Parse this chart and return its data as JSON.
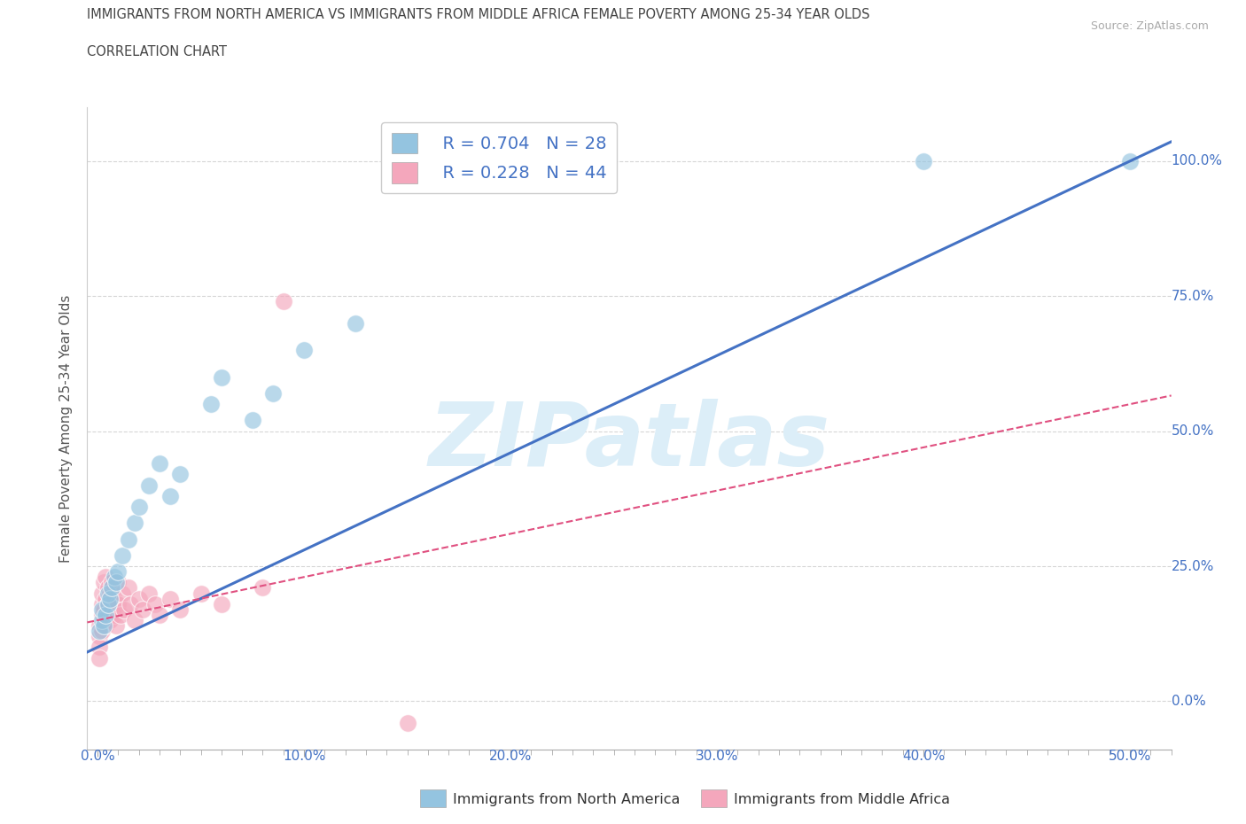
{
  "title_line1": "IMMIGRANTS FROM NORTH AMERICA VS IMMIGRANTS FROM MIDDLE AFRICA FEMALE POVERTY AMONG 25-34 YEAR OLDS",
  "title_line2": "CORRELATION CHART",
  "source": "Source: ZipAtlas.com",
  "xlabel_blue": "Immigrants from North America",
  "xlabel_pink": "Immigrants from Middle Africa",
  "ylabel": "Female Poverty Among 25-34 Year Olds",
  "xlim": [
    -0.005,
    0.52
  ],
  "ylim": [
    -0.09,
    1.1
  ],
  "x_ticks": [
    0.0,
    0.1,
    0.2,
    0.3,
    0.4,
    0.5
  ],
  "x_tick_labels": [
    "0.0%",
    "10.0%",
    "20.0%",
    "30.0%",
    "40.0%",
    "50.0%"
  ],
  "y_ticks": [
    0.0,
    0.25,
    0.5,
    0.75,
    1.0
  ],
  "y_tick_labels": [
    "0.0%",
    "25.0%",
    "50.0%",
    "75.0%",
    "100.0%"
  ],
  "blue_R": 0.704,
  "blue_N": 28,
  "pink_R": 0.228,
  "pink_N": 44,
  "blue_color": "#94c4e0",
  "pink_color": "#f4a7bc",
  "blue_line_color": "#4472c4",
  "pink_line_color": "#e05080",
  "watermark": "ZIPatlas",
  "watermark_color": "#dceef8",
  "background_color": "#ffffff",
  "grid_color": "#cccccc",
  "blue_x": [
    0.001,
    0.002,
    0.002,
    0.003,
    0.004,
    0.005,
    0.005,
    0.006,
    0.007,
    0.008,
    0.009,
    0.01,
    0.012,
    0.015,
    0.018,
    0.02,
    0.025,
    0.03,
    0.035,
    0.04,
    0.055,
    0.06,
    0.075,
    0.085,
    0.1,
    0.125,
    0.4,
    0.5
  ],
  "blue_y": [
    0.13,
    0.15,
    0.17,
    0.14,
    0.16,
    0.18,
    0.2,
    0.19,
    0.21,
    0.23,
    0.22,
    0.24,
    0.27,
    0.3,
    0.33,
    0.36,
    0.4,
    0.44,
    0.38,
    0.42,
    0.55,
    0.6,
    0.52,
    0.57,
    0.65,
    0.7,
    1.0,
    1.0
  ],
  "pink_x": [
    0.001,
    0.001,
    0.001,
    0.001,
    0.002,
    0.002,
    0.002,
    0.002,
    0.003,
    0.003,
    0.003,
    0.004,
    0.004,
    0.004,
    0.005,
    0.005,
    0.005,
    0.006,
    0.006,
    0.007,
    0.007,
    0.008,
    0.008,
    0.009,
    0.01,
    0.01,
    0.011,
    0.012,
    0.013,
    0.015,
    0.016,
    0.018,
    0.02,
    0.022,
    0.025,
    0.028,
    0.03,
    0.035,
    0.04,
    0.05,
    0.06,
    0.08,
    0.09,
    0.15
  ],
  "pink_y": [
    0.14,
    0.12,
    0.1,
    0.08,
    0.16,
    0.13,
    0.18,
    0.2,
    0.15,
    0.17,
    0.22,
    0.14,
    0.19,
    0.23,
    0.16,
    0.18,
    0.21,
    0.15,
    0.2,
    0.17,
    0.22,
    0.16,
    0.19,
    0.14,
    0.18,
    0.22,
    0.16,
    0.2,
    0.17,
    0.21,
    0.18,
    0.15,
    0.19,
    0.17,
    0.2,
    0.18,
    0.16,
    0.19,
    0.17,
    0.2,
    0.18,
    0.21,
    0.74,
    -0.04
  ]
}
